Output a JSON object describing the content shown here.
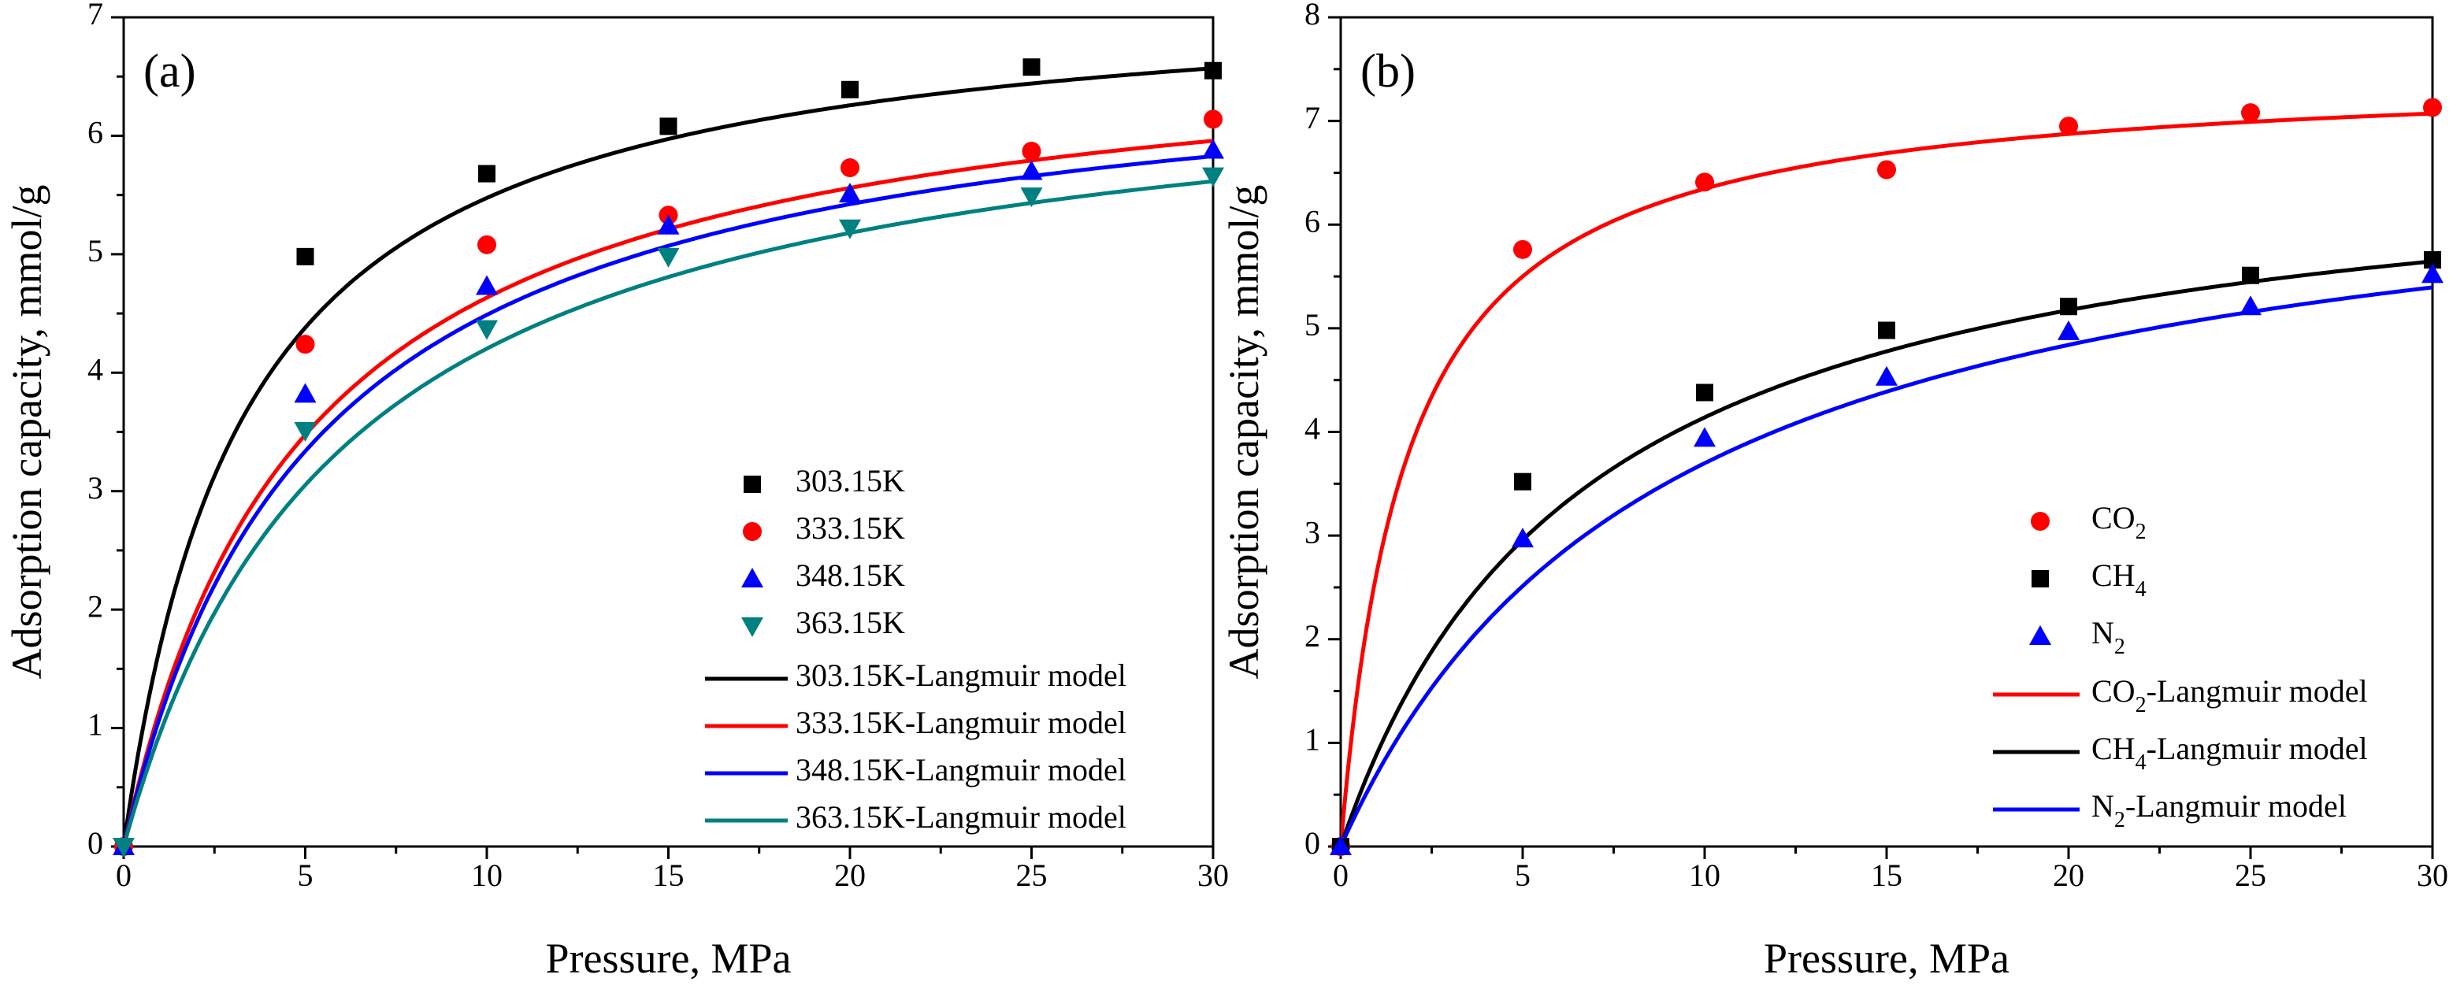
{
  "chart_data": [
    {
      "type": "scatter",
      "panel_label": "(a)",
      "xlabel": "Pressure, MPa",
      "ylabel": "Adsorption capacity, mmol/g",
      "xlim": [
        0,
        30
      ],
      "ylim": [
        0,
        7
      ],
      "xticks": [
        0,
        5,
        10,
        15,
        20,
        25,
        30
      ],
      "yticks": [
        0,
        1,
        2,
        3,
        4,
        5,
        6,
        7
      ],
      "legend_position": "lower-right",
      "x": [
        0,
        5,
        10,
        15,
        20,
        25,
        30
      ],
      "series": [
        {
          "name": "303.15K",
          "marker": "square",
          "color": "#000000",
          "values": [
            0,
            4.98,
            5.68,
            6.08,
            6.39,
            6.58,
            6.55
          ]
        },
        {
          "name": "333.15K",
          "marker": "circle",
          "color": "#ff0000",
          "values": [
            0,
            4.24,
            5.08,
            5.33,
            5.73,
            5.87,
            6.14
          ]
        },
        {
          "name": "348.15K",
          "marker": "triangle-up",
          "color": "#0000ff",
          "values": [
            0,
            3.82,
            4.73,
            5.24,
            5.51,
            5.7,
            5.88
          ]
        },
        {
          "name": "363.15K",
          "marker": "triangle-down",
          "color": "#008080",
          "values": [
            0,
            3.51,
            4.37,
            4.98,
            5.22,
            5.49,
            5.66
          ]
        }
      ],
      "fits": [
        {
          "name": "303.15K-Langmuir model",
          "color": "#000000",
          "qm": 7.3,
          "b": 0.3
        },
        {
          "name": "333.15K-Langmuir model",
          "color": "#ff0000",
          "qm": 6.95,
          "b": 0.2
        },
        {
          "name": "348.15K-Langmuir model",
          "color": "#0000ff",
          "qm": 6.85,
          "b": 0.19
        },
        {
          "name": "363.15K-Langmuir model",
          "color": "#008080",
          "qm": 6.75,
          "b": 0.165
        }
      ]
    },
    {
      "type": "scatter",
      "panel_label": "(b)",
      "xlabel": "Pressure, MPa",
      "ylabel": "Adsorption capacity, mmol/g",
      "xlim": [
        0,
        30
      ],
      "ylim": [
        0,
        8
      ],
      "xticks": [
        0,
        5,
        10,
        15,
        20,
        25,
        30
      ],
      "yticks": [
        0,
        1,
        2,
        3,
        4,
        5,
        6,
        7,
        8
      ],
      "legend_position": "lower-right",
      "x": [
        0,
        5,
        10,
        15,
        20,
        25,
        30
      ],
      "series": [
        {
          "name": "CO",
          "sub": "2",
          "marker": "circle",
          "color": "#ff0000",
          "values": [
            0,
            5.76,
            6.41,
            6.53,
            6.95,
            7.08,
            7.13
          ]
        },
        {
          "name": "CH",
          "sub": "4",
          "marker": "square",
          "color": "#000000",
          "values": [
            0,
            3.52,
            4.38,
            4.98,
            5.21,
            5.51,
            5.66
          ]
        },
        {
          "name": "N",
          "sub": "2",
          "marker": "triangle-up",
          "color": "#0000ff",
          "values": [
            0,
            2.97,
            3.94,
            4.53,
            4.97,
            5.21,
            5.52
          ]
        }
      ],
      "fits": [
        {
          "name": "CO",
          "sub": "2",
          "suffix": "-Langmuir model",
          "color": "#ff0000",
          "qm": 7.5,
          "b": 0.55
        },
        {
          "name": "CH",
          "sub": "4",
          "suffix": "-Langmuir model",
          "color": "#000000",
          "qm": 6.9,
          "b": 0.15
        },
        {
          "name": "N",
          "sub": "2",
          "suffix": "-Langmuir model",
          "color": "#0000ff",
          "qm": 7.0,
          "b": 0.112
        }
      ]
    }
  ]
}
